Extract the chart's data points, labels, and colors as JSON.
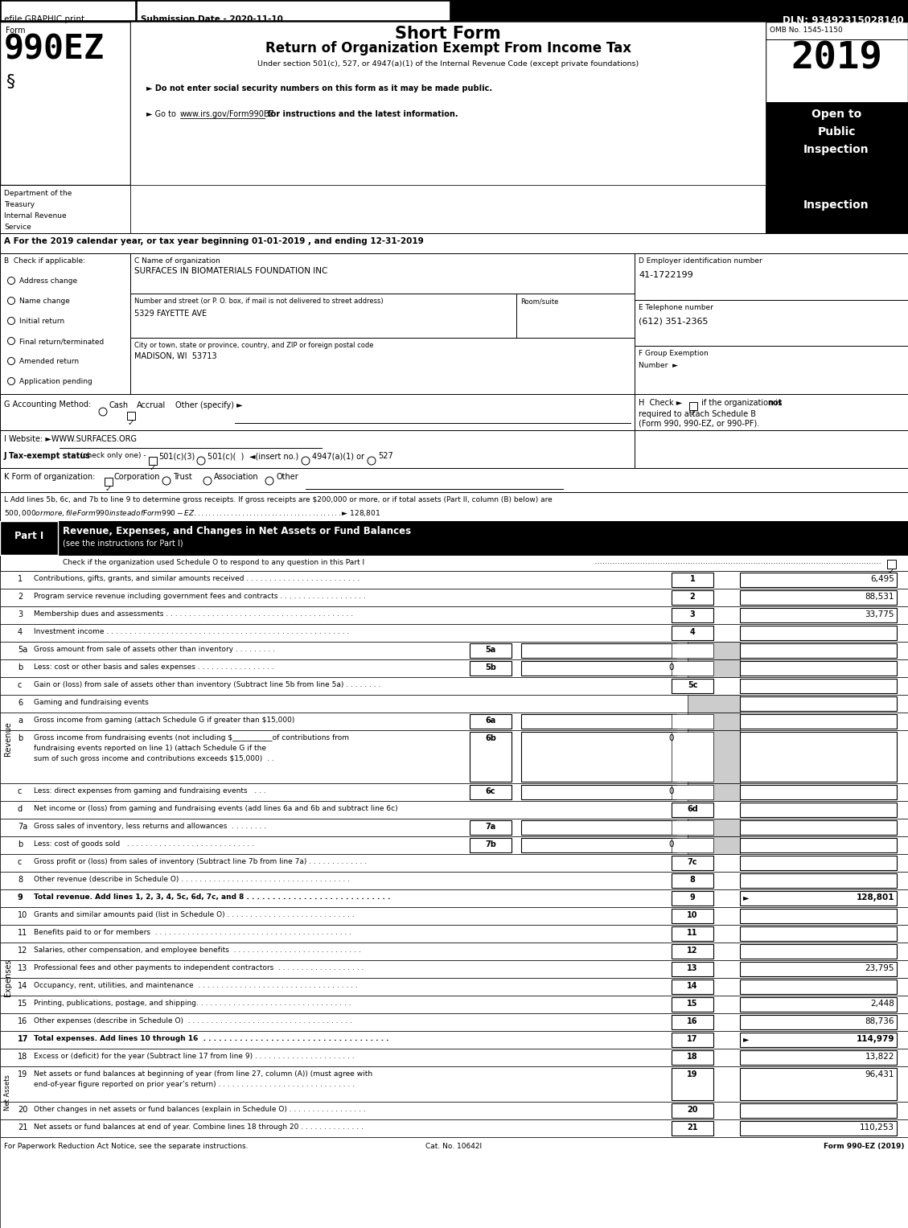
{
  "header_bar": {
    "efile_text": "efile GRAPHIC print",
    "submission_text": "Submission Date - 2020-11-10",
    "dln_text": "DLN: 93492315028140"
  },
  "form_title": {
    "form_label": "Form",
    "form_number": "990EZ",
    "short_form": "Short Form",
    "return_title": "Return of Organization Exempt From Income Tax",
    "under_section": "Under section 501(c), 527, or 4947(a)(1) of the Internal Revenue Code (except private foundations)",
    "bullet1": "► Do not enter social security numbers on this form as it may be made public.",
    "bullet2": "► Go to www.irs.gov/Form990EZ for instructions and the latest information.",
    "www_text": "www.irs.gov/Form990EZ",
    "year": "2019",
    "omb": "OMB No. 1545-1150",
    "open_to": "Open to\nPublic\nInspection"
  },
  "dept": {
    "lines": [
      "Department of the",
      "Treasury",
      "Internal Revenue",
      "Service"
    ]
  },
  "tax_year_line": "A For the 2019 calendar year, or tax year beginning 01-01-2019 , and ending 12-31-2019",
  "section_b_label": "B  Check if applicable:",
  "section_b_items": [
    "Address change",
    "Name change",
    "Initial return",
    "Final return/terminated",
    "Amended return",
    "Application pending"
  ],
  "org_c_label": "C Name of organization",
  "org_name": "SURFACES IN BIOMATERIALS FOUNDATION INC",
  "street_label": "Number and street (or P. O. box, if mail is not delivered to street address)",
  "room_label": "Room/suite",
  "street": "5329 FAYETTE AVE",
  "city_label": "City or town, state or province, country, and ZIP or foreign postal code",
  "city": "MADISON, WI  53713",
  "d_label": "D Employer identification number",
  "ein": "41-1722199",
  "e_label": "E Telephone number",
  "phone": "(612) 351-2365",
  "f_label": "F Group Exemption",
  "f_label2": "Number  ►",
  "g_text": "G Accounting Method:",
  "g_cash": "Cash",
  "g_accrual": "Accrual",
  "g_other": "Other (specify) ►",
  "h_text1": "H  Check ►",
  "h_text2": " if the organization is ",
  "h_text3": "not",
  "h_text4": "required to attach Schedule B\n(Form 990, 990-EZ, or 990-PF).",
  "i_text": "I Website: ►WWW.SURFACES.ORG",
  "j_label": "J Tax-exempt status",
  "j_check": "(check only one) -",
  "j_opts": [
    "501(c)(3)",
    "501(c)(  )",
    "◄(insert no.)",
    "4947(a)(1) or",
    "527"
  ],
  "k_label": "K Form of organization:",
  "k_opts": [
    "Corporation",
    "Trust",
    "Association",
    "Other"
  ],
  "l_line1": "L Add lines 5b, 6c, and 7b to line 9 to determine gross receipts. If gross receipts are $200,000 or more, or if total assets (Part II, column (B) below) are",
  "l_line2": "$500,000 or more, file Form 990 instead of Form 990-EZ . . . . . . . . . . . . . . . . . . . . . . . . . . . . . . . . . . . . . . . . ►$ 128,801",
  "part1_title": "Revenue, Expenses, and Changes in Net Assets or Fund Balances",
  "part1_subtitle": "(see the instructions for Part I)",
  "part1_check": "Check if the organization used Schedule O to respond to any question in this Part I",
  "revenue_rows": [
    {
      "num": "1",
      "text": "Contributions, gifts, grants, and similar amounts received . . . . . . . . . . . . . . . . . . . . . . . . .",
      "lnum": "1",
      "val": "6,495",
      "bold": false,
      "sub": false,
      "gray": false,
      "arrow": false,
      "tall": 1
    },
    {
      "num": "2",
      "text": "Program service revenue including government fees and contracts . . . . . . . . . . . . . . . . . . .",
      "lnum": "2",
      "val": "88,531",
      "bold": false,
      "sub": false,
      "gray": false,
      "arrow": false,
      "tall": 1
    },
    {
      "num": "3",
      "text": "Membership dues and assessments . . . . . . . . . . . . . . . . . . . . . . . . . . . . . . . . . . . . . . . . .",
      "lnum": "3",
      "val": "33,775",
      "bold": false,
      "sub": false,
      "gray": false,
      "arrow": false,
      "tall": 1
    },
    {
      "num": "4",
      "text": "Investment income . . . . . . . . . . . . . . . . . . . . . . . . . . . . . . . . . . . . . . . . . . . . . . . . . . . . .",
      "lnum": "4",
      "val": "",
      "bold": false,
      "sub": false,
      "gray": false,
      "arrow": false,
      "tall": 1
    },
    {
      "num": "5a",
      "text": "Gross amount from sale of assets other than inventory . . . . . . . . .",
      "lnum": "5a",
      "val": "",
      "bold": false,
      "sub": true,
      "gray": true,
      "arrow": false,
      "tall": 1
    },
    {
      "num": "b",
      "text": "Less: cost or other basis and sales expenses . . . . . . . . . . . . . . . . .",
      "lnum": "5b",
      "val": "0",
      "bold": false,
      "sub": true,
      "gray": true,
      "arrow": false,
      "tall": 1
    },
    {
      "num": "c",
      "text": "Gain or (loss) from sale of assets other than inventory (Subtract line 5b from line 5a) . . . . . . . .",
      "lnum": "5c",
      "val": "",
      "bold": false,
      "sub": false,
      "gray": false,
      "arrow": false,
      "tall": 1
    },
    {
      "num": "6",
      "text": "Gaming and fundraising events",
      "lnum": "",
      "val": "",
      "bold": false,
      "sub": false,
      "gray": true,
      "arrow": false,
      "tall": 1
    },
    {
      "num": "a",
      "text": "Gross income from gaming (attach Schedule G if greater than $15,000)",
      "lnum": "6a",
      "val": "",
      "bold": false,
      "sub": true,
      "gray": true,
      "arrow": false,
      "tall": 1
    },
    {
      "num": "b",
      "text": "Gross income from fundraising events (not including $___________of contributions from\nfundraising events reported on line 1) (attach Schedule G if the\nsum of such gross income and contributions exceeds $15,000)  . .",
      "lnum": "6b",
      "val": "0",
      "bold": false,
      "sub": true,
      "gray": true,
      "arrow": false,
      "tall": 3
    },
    {
      "num": "c",
      "text": "Less: direct expenses from gaming and fundraising events   . . .",
      "lnum": "6c",
      "val": "0",
      "bold": false,
      "sub": true,
      "gray": true,
      "arrow": false,
      "tall": 1
    },
    {
      "num": "d",
      "text": "Net income or (loss) from gaming and fundraising events (add lines 6a and 6b and subtract line 6c)",
      "lnum": "6d",
      "val": "",
      "bold": false,
      "sub": false,
      "gray": false,
      "arrow": false,
      "tall": 1
    },
    {
      "num": "7a",
      "text": "Gross sales of inventory, less returns and allowances  . . . . . . . .",
      "lnum": "7a",
      "val": "",
      "bold": false,
      "sub": true,
      "gray": true,
      "arrow": false,
      "tall": 1
    },
    {
      "num": "b",
      "text": "Less: cost of goods sold   . . . . . . . . . . . . . . . . . . . . . . . . . . . .",
      "lnum": "7b",
      "val": "0",
      "bold": false,
      "sub": true,
      "gray": true,
      "arrow": false,
      "tall": 1
    },
    {
      "num": "c",
      "text": "Gross profit or (loss) from sales of inventory (Subtract line 7b from line 7a) . . . . . . . . . . . . .",
      "lnum": "7c",
      "val": "",
      "bold": false,
      "sub": false,
      "gray": false,
      "arrow": false,
      "tall": 1
    },
    {
      "num": "8",
      "text": "Other revenue (describe in Schedule O) . . . . . . . . . . . . . . . . . . . . . . . . . . . . . . . . . . . . .",
      "lnum": "8",
      "val": "",
      "bold": false,
      "sub": false,
      "gray": false,
      "arrow": false,
      "tall": 1
    },
    {
      "num": "9",
      "text": "Total revenue. Add lines 1, 2, 3, 4, 5c, 6d, 7c, and 8 . . . . . . . . . . . . . . . . . . . . . . . . . . . .",
      "lnum": "9",
      "val": "128,801",
      "bold": true,
      "sub": false,
      "gray": false,
      "arrow": true,
      "tall": 1
    }
  ],
  "expense_rows": [
    {
      "num": "10",
      "text": "Grants and similar amounts paid (list in Schedule O) . . . . . . . . . . . . . . . . . . . . . . . . . . . .",
      "lnum": "10",
      "val": "",
      "bold": false,
      "arrow": false
    },
    {
      "num": "11",
      "text": "Benefits paid to or for members  . . . . . . . . . . . . . . . . . . . . . . . . . . . . . . . . . . . . . . . . . . .",
      "lnum": "11",
      "val": "",
      "bold": false,
      "arrow": false
    },
    {
      "num": "12",
      "text": "Salaries, other compensation, and employee benefits  . . . . . . . . . . . . . . . . . . . . . . . . . . . .",
      "lnum": "12",
      "val": "",
      "bold": false,
      "arrow": false
    },
    {
      "num": "13",
      "text": "Professional fees and other payments to independent contractors  . . . . . . . . . . . . . . . . . . .",
      "lnum": "13",
      "val": "23,795",
      "bold": false,
      "arrow": false
    },
    {
      "num": "14",
      "text": "Occupancy, rent, utilities, and maintenance  . . . . . . . . . . . . . . . . . . . . . . . . . . . . . . . . . . .",
      "lnum": "14",
      "val": "",
      "bold": false,
      "arrow": false
    },
    {
      "num": "15",
      "text": "Printing, publications, postage, and shipping. . . . . . . . . . . . . . . . . . . . . . . . . . . . . . . . . .",
      "lnum": "15",
      "val": "2,448",
      "bold": false,
      "arrow": false
    },
    {
      "num": "16",
      "text": "Other expenses (describe in Schedule O)  . . . . . . . . . . . . . . . . . . . . . . . . . . . . . . . . . . . .",
      "lnum": "16",
      "val": "88,736",
      "bold": false,
      "arrow": false
    },
    {
      "num": "17",
      "text": "Total expenses. Add lines 10 through 16  . . . . . . . . . . . . . . . . . . . . . . . . . . . . . . . . . . . .",
      "lnum": "17",
      "val": "114,979",
      "bold": true,
      "arrow": true
    }
  ],
  "net_rows": [
    {
      "num": "18",
      "text": "Excess or (deficit) for the year (Subtract line 17 from line 9) . . . . . . . . . . . . . . . . . . . . . .",
      "lnum": "18",
      "val": "13,822",
      "bold": false,
      "arrow": false,
      "tall": 1
    },
    {
      "num": "19",
      "text": "Net assets or fund balances at beginning of year (from line 27, column (A)) (must agree with\nend-of-year figure reported on prior year’s return) . . . . . . . . . . . . . . . . . . . . . . . . . . . . . .",
      "lnum": "19",
      "val": "96,431",
      "bold": false,
      "arrow": false,
      "tall": 2
    },
    {
      "num": "20",
      "text": "Other changes in net assets or fund balances (explain in Schedule O) . . . . . . . . . . . . . . . . .",
      "lnum": "20",
      "val": "",
      "bold": false,
      "arrow": false,
      "tall": 1
    },
    {
      "num": "21",
      "text": "Net assets or fund balances at end of year. Combine lines 18 through 20 . . . . . . . . . . . . . .",
      "lnum": "21",
      "val": "110,253",
      "bold": false,
      "arrow": false,
      "tall": 1
    }
  ],
  "footer_left": "For Paperwork Reduction Act Notice, see the separate instructions.",
  "footer_center": "Cat. No. 10642I",
  "footer_right": "Form 990-EZ (2019)"
}
